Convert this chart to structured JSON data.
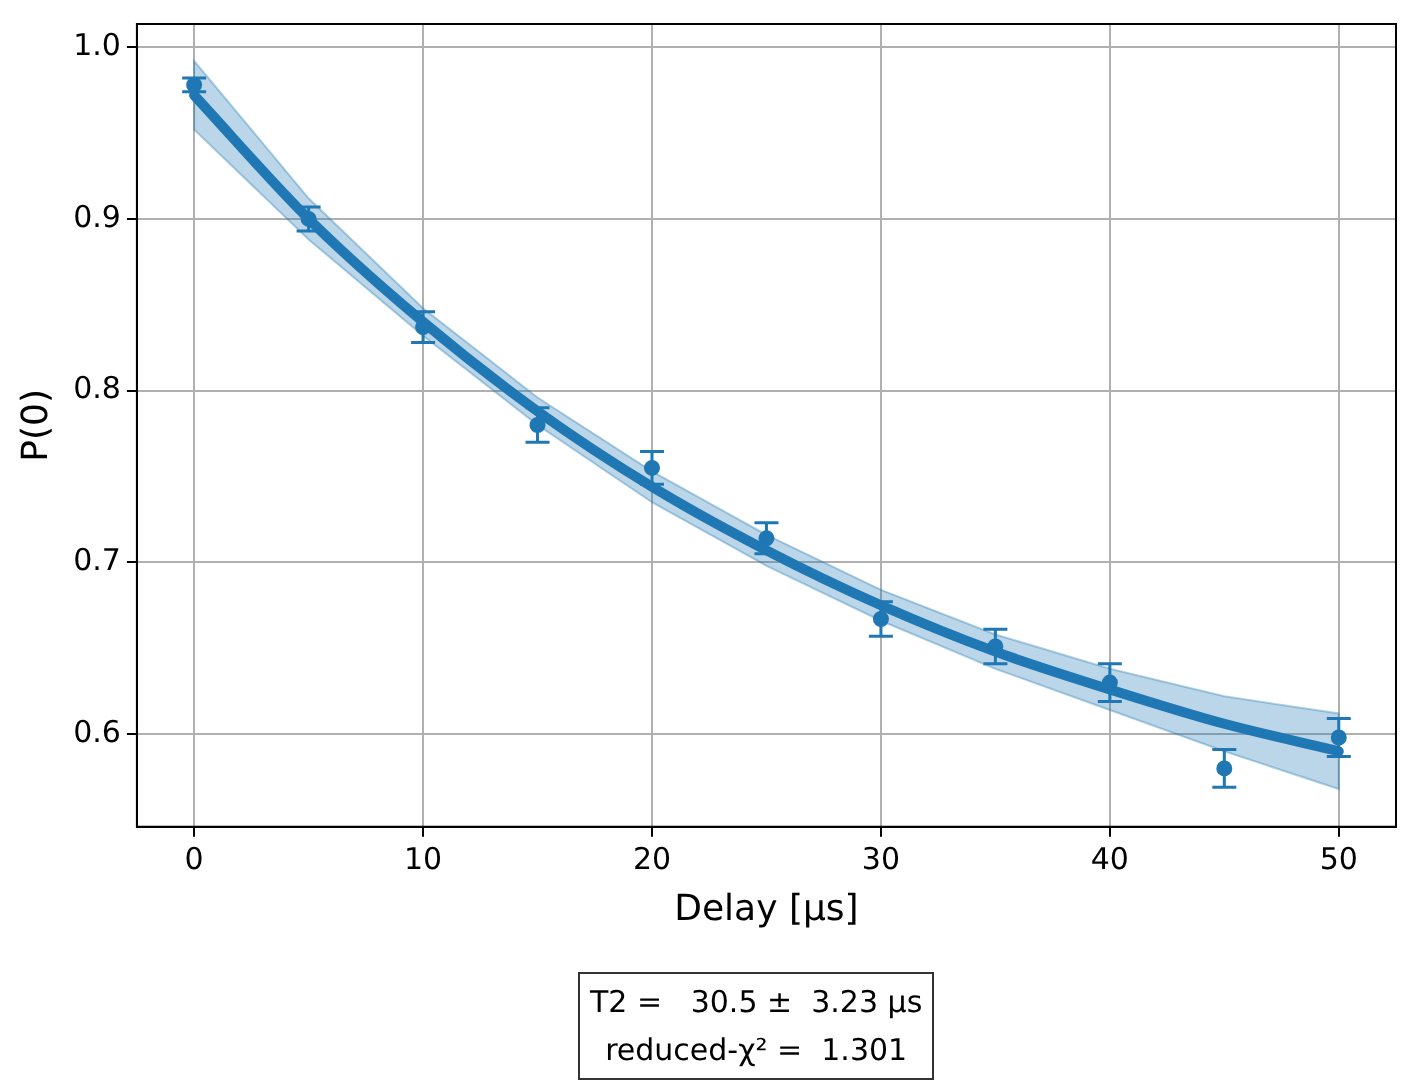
{
  "chart_data": {
    "type": "scatter",
    "xlabel": "Delay [μs]",
    "ylabel": "P(0)",
    "xlim": [
      -2.5,
      52.5
    ],
    "xticks": [
      0,
      10,
      20,
      30,
      40,
      50
    ],
    "ylim": [
      0.546,
      1.0135
    ],
    "yticks": [
      0.6,
      0.7,
      0.8,
      0.9,
      {
        "value": 1,
        "label": "1.0"
      }
    ],
    "grid": true,
    "legend": false,
    "marker": "circle",
    "series": [
      {
        "color": "#1f77b4",
        "x": [
          0,
          5,
          10,
          15,
          20,
          25,
          30,
          35,
          40,
          45,
          50
        ],
        "values": [
          0.978,
          0.9,
          0.837,
          0.78,
          0.755,
          0.714,
          0.667,
          0.651,
          0.63,
          0.58,
          0.598
        ],
        "errors": [
          0.004,
          0.007,
          0.009,
          0.01,
          0.0095,
          0.009,
          0.01,
          0.01,
          0.011,
          0.011,
          0.011
        ]
      },
      {
        "type": "line",
        "marker": "none",
        "color": "#1f77b4",
        "x": [
          0,
          5,
          10,
          15,
          20,
          25,
          30,
          35,
          40,
          45,
          50
        ],
        "values": [
          0.972,
          0.9,
          0.84,
          0.788,
          0.744,
          0.707,
          0.675,
          0.648,
          0.626,
          0.606,
          0.59
        ],
        "lower": [
          0.952,
          0.888,
          0.832,
          0.78,
          0.735,
          0.698,
          0.666,
          0.638,
          0.614,
          0.59,
          0.568
        ],
        "upper": [
          0.992,
          0.912,
          0.848,
          0.796,
          0.753,
          0.716,
          0.684,
          0.658,
          0.638,
          0.622,
          0.612
        ]
      }
    ],
    "annotations": [
      "T2 =   30.5 ±  3.23 μs",
      "reduced-χ² =  1.301"
    ]
  }
}
